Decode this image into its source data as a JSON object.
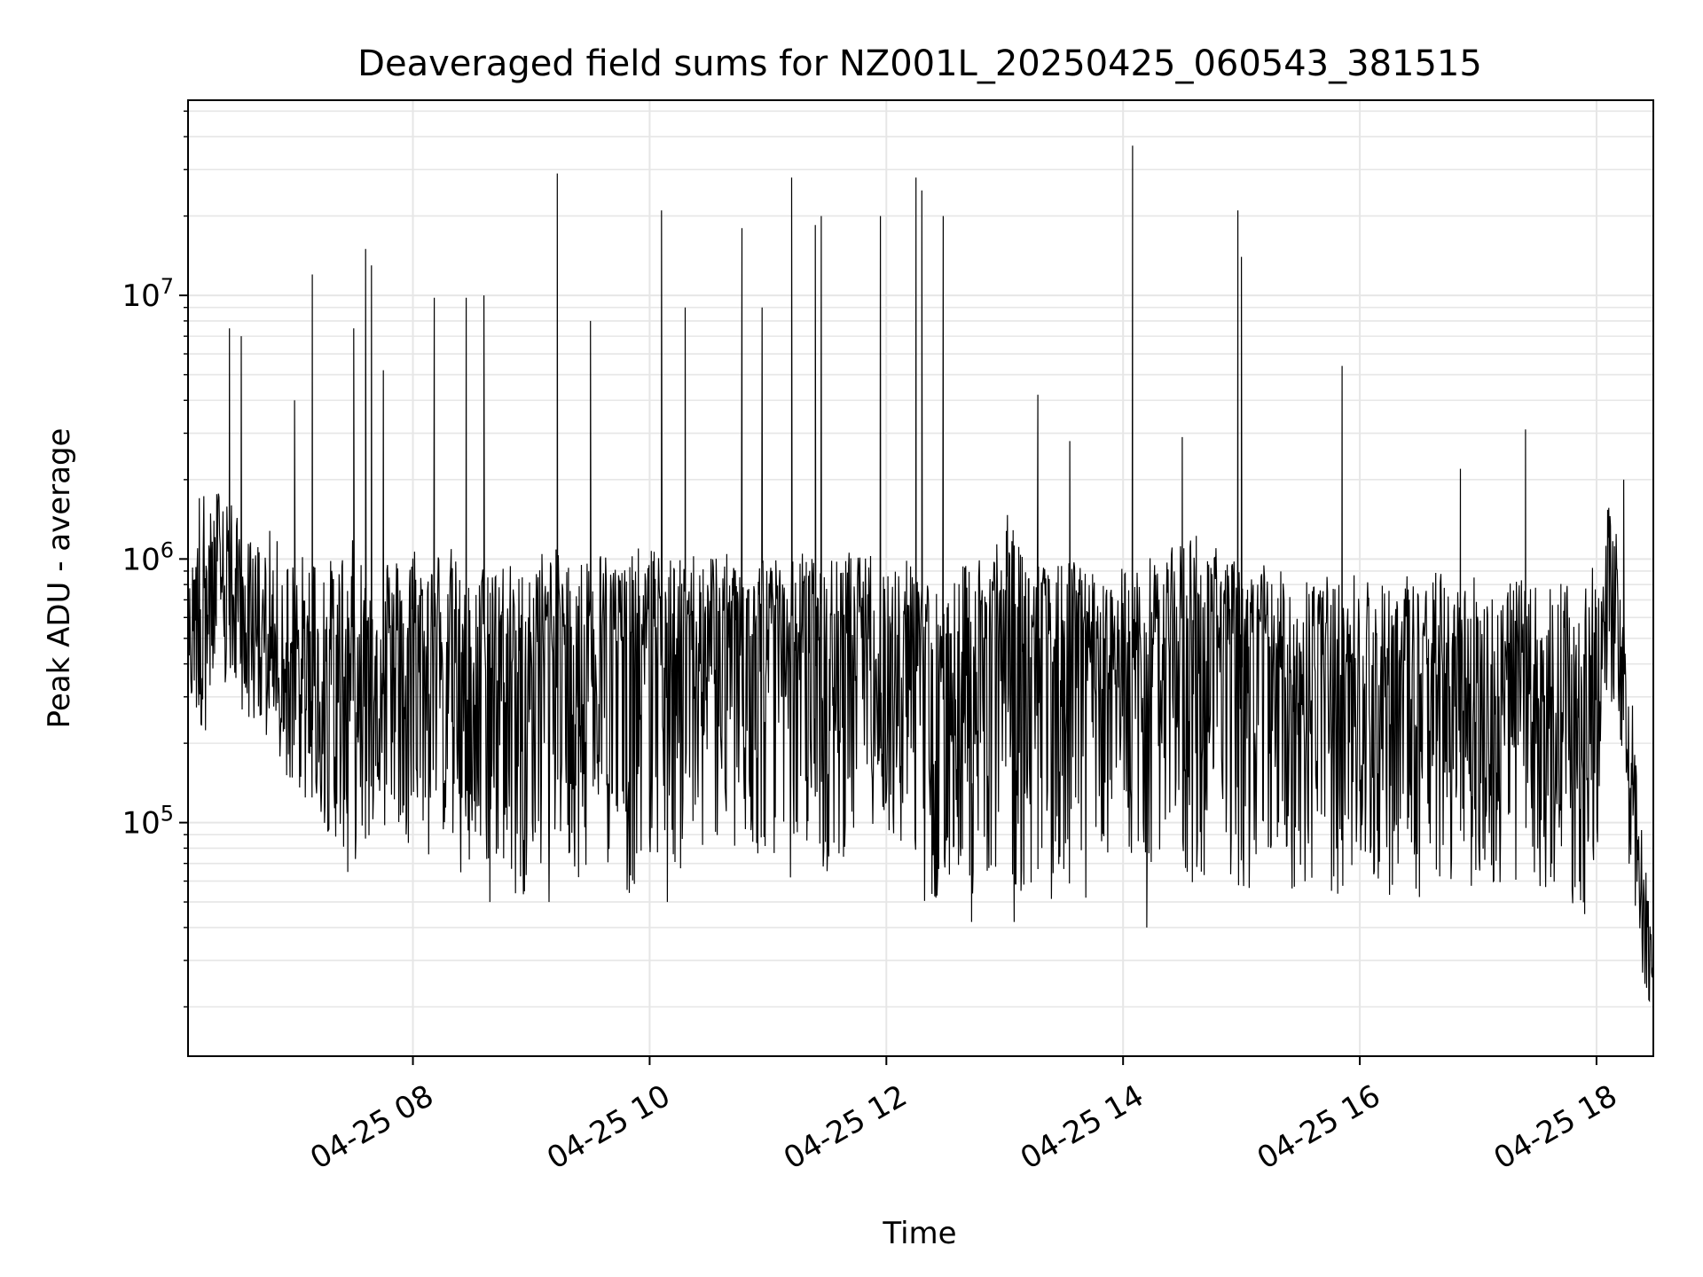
{
  "chart_data": {
    "type": "line",
    "title": "Deaveraged field sums for NZ001L_20250425_060543_381515",
    "xlabel": "Time",
    "ylabel": "Peak ADU - average",
    "x_tick_labels": [
      "04-25 08",
      "04-25 10",
      "04-25 12",
      "04-25 14",
      "04-25 16",
      "04-25 18"
    ],
    "x_tick_hours": [
      8,
      10,
      12,
      14,
      16,
      18
    ],
    "xlim_hours": [
      6.1,
      18.48
    ],
    "yscale": "log",
    "ylim": [
      13000,
      55000000
    ],
    "y_tick_labels": [
      {
        "base": "10",
        "exp": "5",
        "value": 100000
      },
      {
        "base": "10",
        "exp": "6",
        "value": 1000000
      },
      {
        "base": "10",
        "exp": "7",
        "value": 10000000
      }
    ],
    "grid": true,
    "line_color": "#000000",
    "grid_color": "#e6e6e6",
    "series": [
      {
        "name": "",
        "x_hours": [
          6.1,
          6.2,
          6.3,
          6.4,
          6.5,
          6.6,
          6.7,
          6.8,
          6.9,
          7.0,
          7.1,
          7.2,
          7.3,
          7.4,
          7.5,
          7.6,
          7.7,
          7.8,
          7.9,
          8.0,
          8.1,
          8.2,
          8.3,
          8.4,
          8.5,
          8.6,
          8.7,
          8.8,
          8.9,
          9.0,
          9.1,
          9.2,
          9.3,
          9.4,
          9.5,
          9.6,
          9.7,
          9.8,
          9.9,
          10.0,
          10.1,
          10.2,
          10.3,
          10.4,
          10.5,
          10.6,
          10.7,
          10.8,
          10.9,
          11.0,
          11.1,
          11.2,
          11.3,
          11.4,
          11.5,
          11.6,
          11.7,
          11.8,
          11.9,
          12.0,
          12.1,
          12.2,
          12.3,
          12.4,
          12.5,
          12.6,
          12.7,
          12.8,
          12.9,
          13.0,
          13.1,
          13.2,
          13.3,
          13.4,
          13.5,
          13.6,
          13.7,
          13.8,
          13.9,
          14.0,
          14.1,
          14.2,
          14.3,
          14.4,
          14.5,
          14.6,
          14.7,
          14.8,
          14.9,
          15.0,
          15.1,
          15.2,
          15.3,
          15.4,
          15.5,
          15.6,
          15.7,
          15.8,
          15.9,
          16.0,
          16.1,
          16.2,
          16.3,
          16.4,
          16.5,
          16.6,
          16.7,
          16.8,
          16.9,
          17.0,
          17.1,
          17.2,
          17.3,
          17.4,
          17.5,
          17.6,
          17.7,
          17.8,
          17.9,
          18.0,
          18.1,
          18.2,
          18.3,
          18.4,
          18.48
        ],
        "low": [
          300000,
          200000,
          250000,
          300000,
          280000,
          250000,
          220000,
          180000,
          150000,
          130000,
          120000,
          100000,
          90000,
          80000,
          70000,
          80000,
          90000,
          100000,
          90000,
          80000,
          70000,
          80000,
          90000,
          60000,
          50000,
          60000,
          70000,
          60000,
          50000,
          60000,
          70000,
          80000,
          70000,
          60000,
          70000,
          80000,
          60000,
          50000,
          60000,
          70000,
          80000,
          70000,
          60000,
          70000,
          80000,
          90000,
          70000,
          60000,
          70000,
          80000,
          70000,
          60000,
          80000,
          70000,
          60000,
          70000,
          80000,
          90000,
          100000,
          90000,
          70000,
          80000,
          50000,
          45000,
          60000,
          70000,
          45000,
          60000,
          70000,
          60000,
          50000,
          60000,
          50000,
          45000,
          50000,
          60000,
          50000,
          60000,
          70000,
          80000,
          70000,
          60000,
          70000,
          80000,
          60000,
          55000,
          60000,
          70000,
          60000,
          50000,
          60000,
          70000,
          60000,
          55000,
          50000,
          55000,
          60000,
          50000,
          55000,
          60000,
          60000,
          50000,
          55000,
          60000,
          50000,
          55000,
          60000,
          50000,
          55000,
          60000,
          50000,
          55000,
          60000,
          50000,
          45000,
          50000,
          60000,
          45000,
          50000,
          60000,
          300000,
          200000,
          40000,
          25000,
          18000
        ],
        "mid": [
          500000,
          800000,
          700000,
          900000,
          600000,
          550000,
          500000,
          450000,
          400000,
          350000,
          300000,
          300000,
          400000,
          350000,
          400000,
          300000,
          500000,
          450000,
          400000,
          500000,
          400000,
          500000,
          550000,
          300000,
          250000,
          400000,
          450000,
          400000,
          350000,
          450000,
          500000,
          550000,
          500000,
          450000,
          500000,
          550000,
          500000,
          450000,
          500000,
          550000,
          550000,
          500000,
          450000,
          550000,
          500000,
          550000,
          500000,
          450000,
          500000,
          550000,
          500000,
          450000,
          500000,
          500000,
          450000,
          500000,
          550000,
          500000,
          550000,
          500000,
          450000,
          500000,
          450000,
          250000,
          200000,
          350000,
          400000,
          450000,
          500000,
          500000,
          600000,
          500000,
          450000,
          400000,
          450000,
          500000,
          450000,
          400000,
          350000,
          450000,
          400000,
          450000,
          500000,
          500000,
          550000,
          600000,
          550000,
          500000,
          450000,
          450000,
          400000,
          450000,
          400000,
          350000,
          400000,
          450000,
          400000,
          350000,
          350000,
          400000,
          350000,
          300000,
          350000,
          400000,
          350000,
          300000,
          350000,
          300000,
          300000,
          350000,
          300000,
          300000,
          350000,
          300000,
          300000,
          250000,
          300000,
          250000,
          300000,
          400000,
          700000,
          500000,
          120000,
          45000,
          25000
        ],
        "high": [
          700000,
          2000000,
          1500000,
          2500000,
          1500000,
          1200000,
          1200000,
          1300000,
          1100000,
          1000000,
          1100000,
          1200000,
          1000000,
          1100000,
          1200000,
          1000000,
          1000000,
          1100000,
          1000000,
          1200000,
          1000000,
          1100000,
          1200000,
          900000,
          800000,
          1000000,
          1100000,
          1000000,
          900000,
          1000000,
          1100000,
          1100000,
          1000000,
          1000000,
          1100000,
          1100000,
          1000000,
          1000000,
          1100000,
          1100000,
          1100000,
          1000000,
          1000000,
          1100000,
          1100000,
          1100000,
          1000000,
          1000000,
          1100000,
          1100000,
          1000000,
          1000000,
          1100000,
          1000000,
          1000000,
          1000000,
          1100000,
          1000000,
          1100000,
          1000000,
          1000000,
          1000000,
          1000000,
          800000,
          700000,
          900000,
          1000000,
          1100000,
          1200000,
          1500000,
          1400000,
          1000000,
          1000000,
          900000,
          1000000,
          1000000,
          900000,
          900000,
          800000,
          1000000,
          900000,
          1000000,
          1100000,
          1100000,
          1200000,
          1300000,
          1200000,
          1100000,
          1000000,
          1000000,
          900000,
          1000000,
          900000,
          900000,
          900000,
          1000000,
          900000,
          800000,
          900000,
          900000,
          900000,
          800000,
          900000,
          900000,
          800000,
          900000,
          900000,
          800000,
          900000,
          900000,
          800000,
          800000,
          900000,
          800000,
          800000,
          800000,
          900000,
          700000,
          800000,
          1000000,
          1600000,
          1200000,
          300000,
          80000,
          35000
        ],
        "spikes": [
          [
            6.45,
            7500000
          ],
          [
            6.55,
            7000000
          ],
          [
            7.0,
            4000000
          ],
          [
            7.15,
            12000000
          ],
          [
            7.5,
            7500000
          ],
          [
            7.6,
            15000000
          ],
          [
            7.65,
            13000000
          ],
          [
            7.75,
            5200000
          ],
          [
            8.18,
            9800000
          ],
          [
            8.45,
            9800000
          ],
          [
            8.6,
            10000000
          ],
          [
            9.22,
            29000000
          ],
          [
            9.5,
            8000000
          ],
          [
            10.1,
            21000000
          ],
          [
            10.3,
            9000000
          ],
          [
            10.78,
            18000000
          ],
          [
            10.95,
            9000000
          ],
          [
            11.2,
            28000000
          ],
          [
            11.4,
            18500000
          ],
          [
            11.45,
            20000000
          ],
          [
            11.95,
            20000000
          ],
          [
            12.25,
            28000000
          ],
          [
            12.3,
            25000000
          ],
          [
            12.48,
            20000000
          ],
          [
            13.28,
            4200000
          ],
          [
            13.55,
            2800000
          ],
          [
            14.08,
            37000000
          ],
          [
            14.5,
            2900000
          ],
          [
            14.97,
            21000000
          ],
          [
            15.0,
            14000000
          ],
          [
            15.85,
            5400000
          ],
          [
            16.85,
            2200000
          ],
          [
            17.4,
            3100000
          ],
          [
            18.23,
            2000000
          ]
        ],
        "dips": [
          [
            7.45,
            65000
          ],
          [
            8.65,
            50000
          ],
          [
            9.15,
            50000
          ],
          [
            10.15,
            50000
          ],
          [
            12.72,
            42000
          ],
          [
            13.08,
            42000
          ],
          [
            14.2,
            40000
          ],
          [
            17.9,
            45000
          ]
        ]
      }
    ]
  }
}
